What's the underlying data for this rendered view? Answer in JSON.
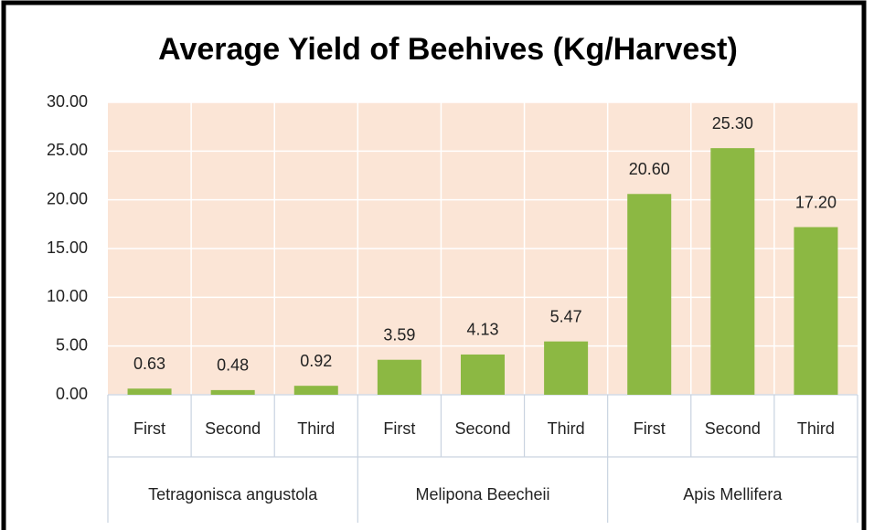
{
  "chart_data": {
    "type": "bar",
    "title": "Average Yield of Beehives (Kg/Harvest)",
    "categories": [
      "First",
      "Second",
      "Third",
      "First",
      "Second",
      "Third",
      "First",
      "Second",
      "Third"
    ],
    "groups": [
      "Tetragonisca angustola",
      "Melipona Beecheii",
      "Apis Mellifera"
    ],
    "values": [
      0.63,
      0.48,
      0.92,
      3.59,
      4.13,
      5.47,
      20.6,
      25.3,
      17.2
    ],
    "value_labels": [
      "0.63",
      "0.48",
      "0.92",
      "3.59",
      "4.13",
      "5.47",
      "20.60",
      "25.30",
      "17.20"
    ],
    "color": "#8cb843",
    "background": "#fbe5d6",
    "ylim": [
      0,
      30
    ],
    "yticks": [
      {
        "value": 0,
        "label": "0.00"
      },
      {
        "value": 5,
        "label": "5.00"
      },
      {
        "value": 10,
        "label": "10.00"
      },
      {
        "value": 15,
        "label": "15.00"
      },
      {
        "value": 20,
        "label": "20.00"
      },
      {
        "value": 25,
        "label": "25.00"
      },
      {
        "value": 30,
        "label": "30.00"
      }
    ],
    "grid": true
  }
}
